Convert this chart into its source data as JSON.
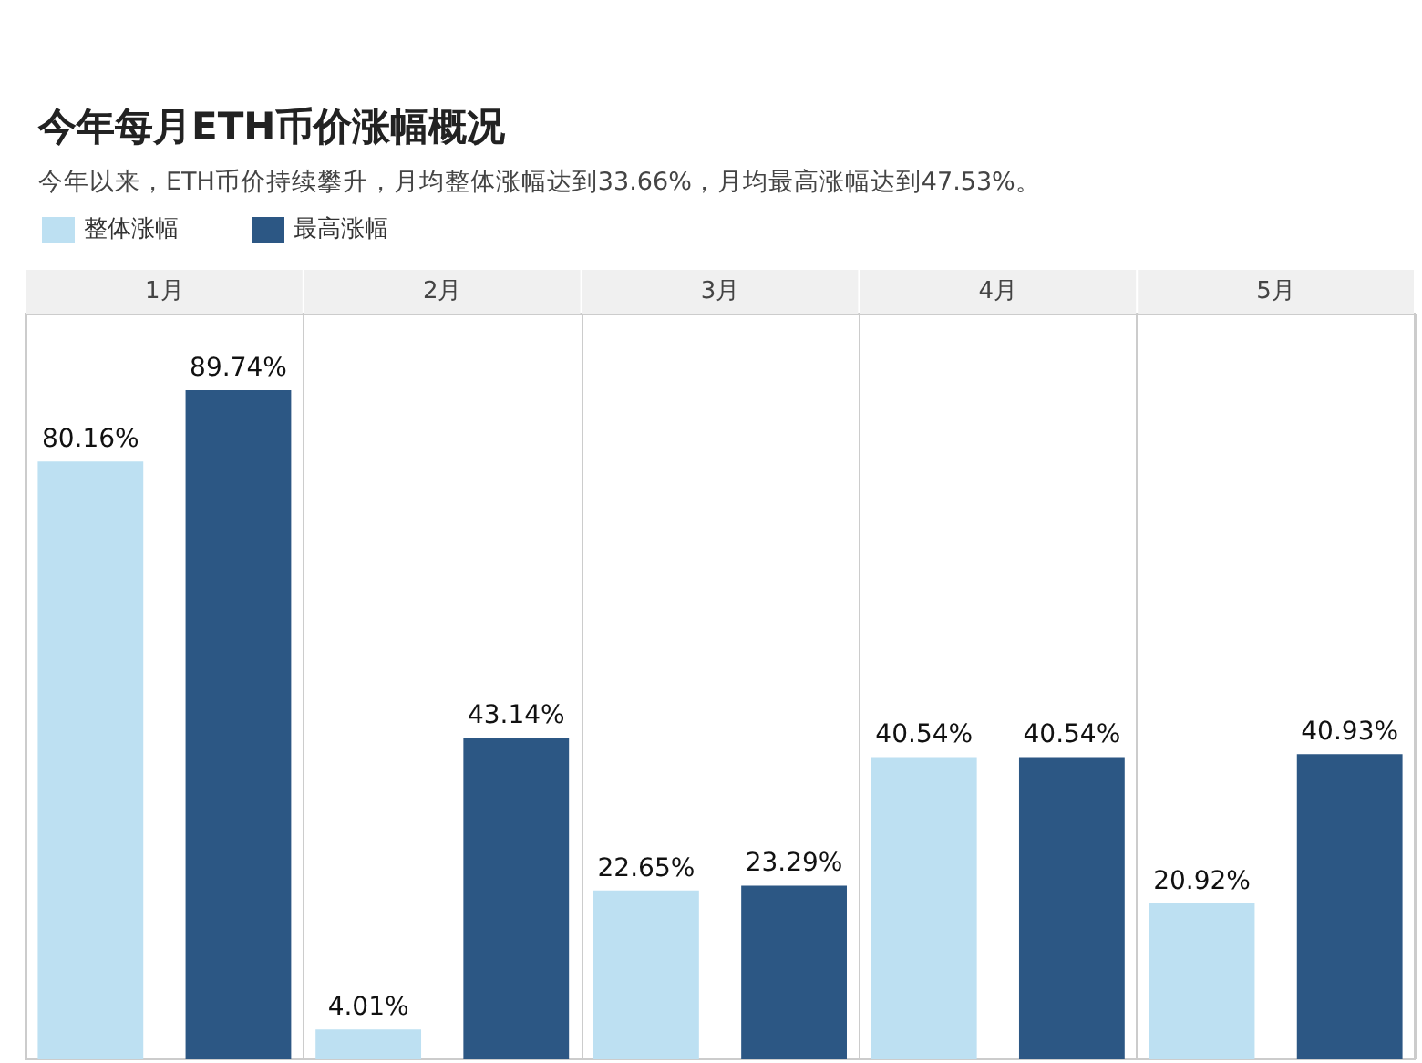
{
  "chart_data": {
    "type": "bar",
    "title": "今年每月ETH币价涨幅概况",
    "subtitle": "今年以来，ETH币价持续攀升，月均整体涨幅达到33.66%，月均最高涨幅达到47.53%。",
    "categories": [
      "1月",
      "2月",
      "3月",
      "4月",
      "5月"
    ],
    "series": [
      {
        "name": "整体涨幅",
        "color": "#bde0f2",
        "values": [
          80.16,
          4.01,
          22.65,
          40.54,
          20.92
        ],
        "value_labels": [
          "80.16%",
          "4.01%",
          "22.65%",
          "40.54%",
          "20.92%"
        ]
      },
      {
        "name": "最高涨幅",
        "color": "#2c5784",
        "values": [
          89.74,
          43.14,
          23.29,
          40.54,
          40.93
        ],
        "value_labels": [
          "89.74%",
          "43.14%",
          "23.29%",
          "40.54%",
          "40.93%"
        ]
      }
    ],
    "legend": "top left",
    "grid": "x"
  }
}
